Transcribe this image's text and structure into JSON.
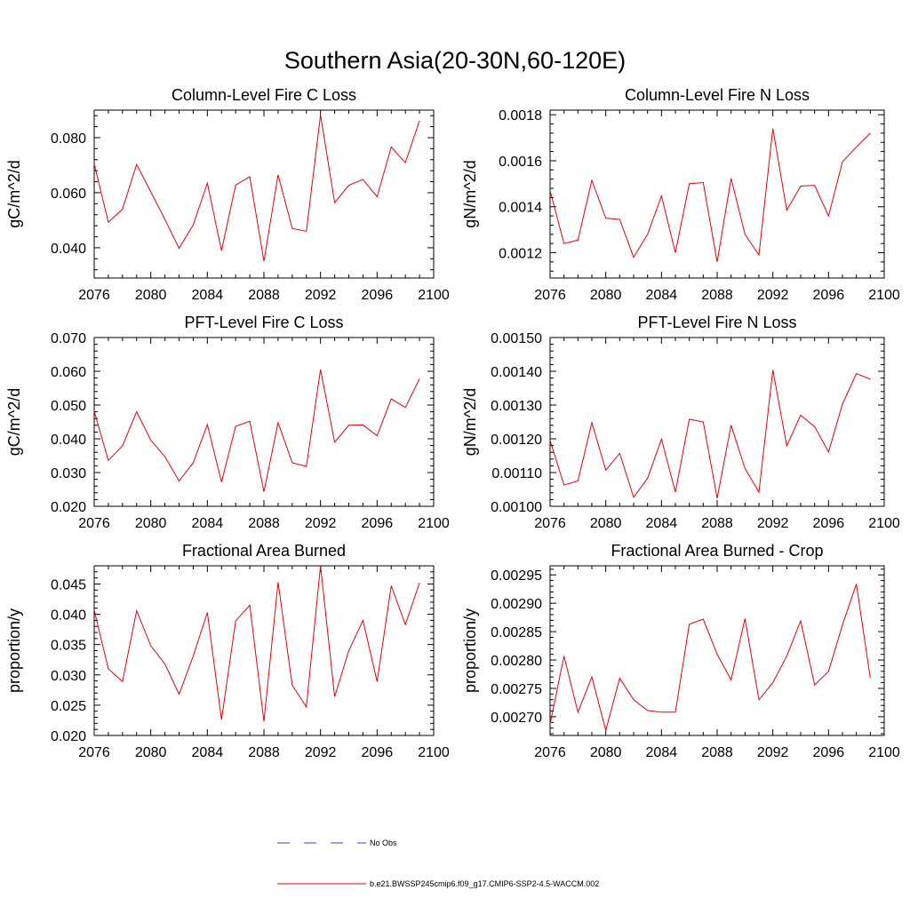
{
  "figure": {
    "title": "Southern Asia(20-30N,60-120E)",
    "legend": {
      "obs_label": "No Obs",
      "model_label": "b.e21.BWSSP245cmip6.f09_g17.CMIP6-SSP2-4.5-WACCM.002",
      "obs_color": "#3b3bd9",
      "model_color": "#e8000b"
    }
  },
  "chart_data": [
    {
      "type": "line",
      "title": "Column-Level Fire C Loss",
      "xlabel": "",
      "ylabel": "gC/m^2/d",
      "xlim": [
        2076,
        2100
      ],
      "ylim": [
        0.029,
        0.09
      ],
      "xticks": [
        2076,
        2080,
        2084,
        2088,
        2092,
        2096,
        2100
      ],
      "xtick_labels": [
        "2076",
        "2080",
        "2084",
        "2088",
        "2092",
        "2096",
        "2100"
      ],
      "yticks": [
        0.04,
        0.06,
        0.08
      ],
      "ytick_labels": [
        "0.040",
        "0.060",
        "0.080"
      ],
      "series": [
        {
          "name": "b.e21.BWSSP245cmip6.f09_g17.CMIP6-SSP2-4.5-WACCM.002",
          "x": [
            2076,
            2077,
            2078,
            2079,
            2080,
            2081,
            2082,
            2083,
            2084,
            2085,
            2086,
            2087,
            2088,
            2089,
            2090,
            2091,
            2092,
            2093,
            2094,
            2095,
            2096,
            2097,
            2098,
            2099
          ],
          "values": [
            0.0705,
            0.0493,
            0.054,
            0.0703,
            0.0603,
            0.0503,
            0.0398,
            0.0483,
            0.0635,
            0.0389,
            0.0628,
            0.0658,
            0.0351,
            0.0665,
            0.047,
            0.046,
            0.0882,
            0.0564,
            0.0627,
            0.0648,
            0.0585,
            0.0766,
            0.0709,
            0.0862
          ]
        }
      ]
    },
    {
      "type": "line",
      "title": "Column-Level Fire N Loss",
      "xlabel": "",
      "ylabel": "gN/m^2/d",
      "xlim": [
        2076,
        2100
      ],
      "ylim": [
        0.00109,
        0.00182
      ],
      "xticks": [
        2076,
        2080,
        2084,
        2088,
        2092,
        2096,
        2100
      ],
      "xtick_labels": [
        "2076",
        "2080",
        "2084",
        "2088",
        "2092",
        "2096",
        "2100"
      ],
      "yticks": [
        0.0012,
        0.0014,
        0.0016,
        0.0018
      ],
      "ytick_labels": [
        "0.0012",
        "0.0014",
        "0.0016",
        "0.0018"
      ],
      "series": [
        {
          "name": "b.e21.BWSSP245cmip6.f09_g17.CMIP6-SSP2-4.5-WACCM.002",
          "x": [
            2076,
            2077,
            2078,
            2079,
            2080,
            2081,
            2082,
            2083,
            2084,
            2085,
            2086,
            2087,
            2088,
            2089,
            2090,
            2091,
            2092,
            2093,
            2094,
            2095,
            2096,
            2097,
            2098,
            2099
          ],
          "values": [
            0.00147,
            0.00124,
            0.001255,
            0.001515,
            0.00135,
            0.001345,
            0.00118,
            0.00128,
            0.001447,
            0.0012,
            0.0015,
            0.001505,
            0.00116,
            0.001523,
            0.00128,
            0.00119,
            0.00174,
            0.001385,
            0.00149,
            0.001493,
            0.00136,
            0.001595,
            0.00166,
            0.00172
          ]
        }
      ]
    },
    {
      "type": "line",
      "title": "PFT-Level Fire C Loss",
      "xlabel": "",
      "ylabel": "gC/m^2/d",
      "xlim": [
        2076,
        2100
      ],
      "ylim": [
        0.02,
        0.07
      ],
      "xticks": [
        2076,
        2080,
        2084,
        2088,
        2092,
        2096,
        2100
      ],
      "xtick_labels": [
        "2076",
        "2080",
        "2084",
        "2088",
        "2092",
        "2096",
        "2100"
      ],
      "yticks": [
        0.02,
        0.03,
        0.04,
        0.05,
        0.06,
        0.07
      ],
      "ytick_labels": [
        "0.020",
        "0.030",
        "0.040",
        "0.050",
        "0.060",
        "0.070"
      ],
      "series": [
        {
          "name": "b.e21.BWSSP245cmip6.f09_g17.CMIP6-SSP2-4.5-WACCM.002",
          "x": [
            2076,
            2077,
            2078,
            2079,
            2080,
            2081,
            2082,
            2083,
            2084,
            2085,
            2086,
            2087,
            2088,
            2089,
            2090,
            2091,
            2092,
            2093,
            2094,
            2095,
            2096,
            2097,
            2098,
            2099
          ],
          "values": [
            0.0482,
            0.0336,
            0.0379,
            0.048,
            0.0396,
            0.0347,
            0.0275,
            0.0329,
            0.0442,
            0.0272,
            0.0437,
            0.0452,
            0.0243,
            0.0448,
            0.0329,
            0.0318,
            0.0605,
            0.039,
            0.044,
            0.0441,
            0.0409,
            0.0518,
            0.0493,
            0.0578
          ]
        }
      ]
    },
    {
      "type": "line",
      "title": "PFT-Level Fire N Loss",
      "xlabel": "",
      "ylabel": "gN/m^2/d",
      "xlim": [
        2076,
        2100
      ],
      "ylim": [
        0.001,
        0.0015
      ],
      "xticks": [
        2076,
        2080,
        2084,
        2088,
        2092,
        2096,
        2100
      ],
      "xtick_labels": [
        "2076",
        "2080",
        "2084",
        "2088",
        "2092",
        "2096",
        "2100"
      ],
      "yticks": [
        0.001,
        0.0011,
        0.0012,
        0.0013,
        0.0014,
        0.0015
      ],
      "ytick_labels": [
        "0.00100",
        "0.00110",
        "0.00120",
        "0.00130",
        "0.00140",
        "0.00150"
      ],
      "series": [
        {
          "name": "b.e21.BWSSP245cmip6.f09_g17.CMIP6-SSP2-4.5-WACCM.002",
          "x": [
            2076,
            2077,
            2078,
            2079,
            2080,
            2081,
            2082,
            2083,
            2084,
            2085,
            2086,
            2087,
            2088,
            2089,
            2090,
            2091,
            2092,
            2093,
            2094,
            2095,
            2096,
            2097,
            2098,
            2099
          ],
          "values": [
            0.001195,
            0.001063,
            0.001075,
            0.001248,
            0.001107,
            0.001157,
            0.001027,
            0.001083,
            0.001199,
            0.001042,
            0.001258,
            0.00125,
            0.001024,
            0.00124,
            0.001112,
            0.001042,
            0.001404,
            0.001179,
            0.00127,
            0.001236,
            0.001161,
            0.001303,
            0.001393,
            0.001377
          ]
        }
      ]
    },
    {
      "type": "line",
      "title": "Fractional Area Burned",
      "xlabel": "",
      "ylabel": "proportion/y",
      "xlim": [
        2076,
        2100
      ],
      "ylim": [
        0.02,
        0.048
      ],
      "xticks": [
        2076,
        2080,
        2084,
        2088,
        2092,
        2096,
        2100
      ],
      "xtick_labels": [
        "2076",
        "2080",
        "2084",
        "2088",
        "2092",
        "2096",
        "2100"
      ],
      "yticks": [
        0.02,
        0.025,
        0.03,
        0.035,
        0.04,
        0.045
      ],
      "ytick_labels": [
        "0.020",
        "0.025",
        "0.030",
        "0.035",
        "0.040",
        "0.045"
      ],
      "series": [
        {
          "name": "b.e21.BWSSP245cmip6.f09_g17.CMIP6-SSP2-4.5-WACCM.002",
          "x": [
            2076,
            2077,
            2078,
            2079,
            2080,
            2081,
            2082,
            2083,
            2084,
            2085,
            2086,
            2087,
            2088,
            2089,
            2090,
            2091,
            2092,
            2093,
            2094,
            2095,
            2096,
            2097,
            2098,
            2099
          ],
          "values": [
            0.0407,
            0.031,
            0.0289,
            0.0406,
            0.0348,
            0.0318,
            0.0268,
            0.0331,
            0.0403,
            0.0226,
            0.0389,
            0.0415,
            0.0223,
            0.0453,
            0.0283,
            0.0247,
            0.048,
            0.0264,
            0.034,
            0.039,
            0.0289,
            0.0447,
            0.0383,
            0.0452
          ]
        }
      ]
    },
    {
      "type": "line",
      "title": "Fractional Area Burned - Crop",
      "xlabel": "",
      "ylabel": "proportion/y",
      "xlim": [
        2076,
        2100
      ],
      "ylim": [
        0.002667,
        0.002966
      ],
      "xticks": [
        2076,
        2080,
        2084,
        2088,
        2092,
        2096,
        2100
      ],
      "xtick_labels": [
        "2076",
        "2080",
        "2084",
        "2088",
        "2092",
        "2096",
        "2100"
      ],
      "yticks": [
        0.0027,
        0.00275,
        0.0028,
        0.00285,
        0.0029,
        0.00295
      ],
      "ytick_labels": [
        "0.00270",
        "0.00275",
        "0.00280",
        "0.00285",
        "0.00290",
        "0.00295"
      ],
      "series": [
        {
          "name": "b.e21.BWSSP245cmip6.f09_g17.CMIP6-SSP2-4.5-WACCM.002",
          "x": [
            2076,
            2077,
            2078,
            2079,
            2080,
            2081,
            2082,
            2083,
            2084,
            2085,
            2086,
            2087,
            2088,
            2089,
            2090,
            2091,
            2092,
            2093,
            2094,
            2095,
            2096,
            2097,
            2098,
            2099
          ],
          "values": [
            0.002687,
            0.002807,
            0.002708,
            0.00277,
            0.002676,
            0.002768,
            0.00273,
            0.002711,
            0.002708,
            0.002708,
            0.002863,
            0.002872,
            0.00281,
            0.002765,
            0.002873,
            0.00273,
            0.00276,
            0.002807,
            0.002869,
            0.002756,
            0.00278,
            0.002862,
            0.002934,
            0.002768
          ]
        }
      ]
    }
  ]
}
